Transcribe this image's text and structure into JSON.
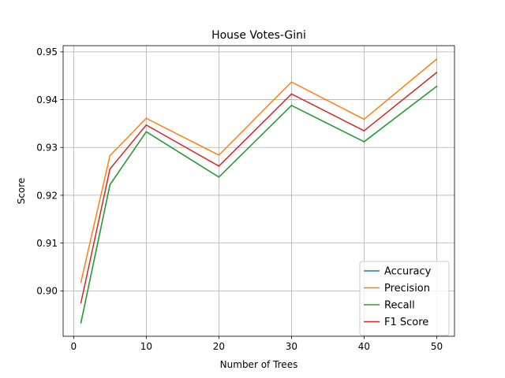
{
  "chart_data": {
    "type": "line",
    "title": "House Votes-Gini",
    "xlabel": "Number of Trees",
    "ylabel": "Score",
    "x": [
      1,
      5,
      10,
      20,
      30,
      40,
      50
    ],
    "xticks": [
      0,
      10,
      20,
      30,
      40,
      50
    ],
    "yticks": [
      0.9,
      0.91,
      0.92,
      0.93,
      0.94,
      0.95
    ],
    "ytick_labels": [
      "0.90",
      "0.91",
      "0.92",
      "0.93",
      "0.94",
      "0.95"
    ],
    "xlim": [
      -1.45,
      52.45
    ],
    "ylim": [
      0.8905,
      0.9513
    ],
    "grid": true,
    "legend_position": "lower right",
    "series": [
      {
        "name": "Accuracy",
        "color": "#1f77b4",
        "values": [
          0.8933,
          0.9222,
          0.9333,
          0.9238,
          0.9388,
          0.9312,
          0.9428
        ]
      },
      {
        "name": "Precision",
        "color": "#ff7f0e",
        "values": [
          0.9018,
          0.9283,
          0.9361,
          0.9284,
          0.9437,
          0.9359,
          0.9485
        ]
      },
      {
        "name": "Recall",
        "color": "#2ca02c",
        "values": [
          0.8933,
          0.9222,
          0.9333,
          0.9238,
          0.9388,
          0.9312,
          0.9428
        ]
      },
      {
        "name": "F1 Score",
        "color": "#d62728",
        "values": [
          0.8975,
          0.9255,
          0.9347,
          0.9261,
          0.9412,
          0.9335,
          0.9457
        ]
      }
    ]
  }
}
